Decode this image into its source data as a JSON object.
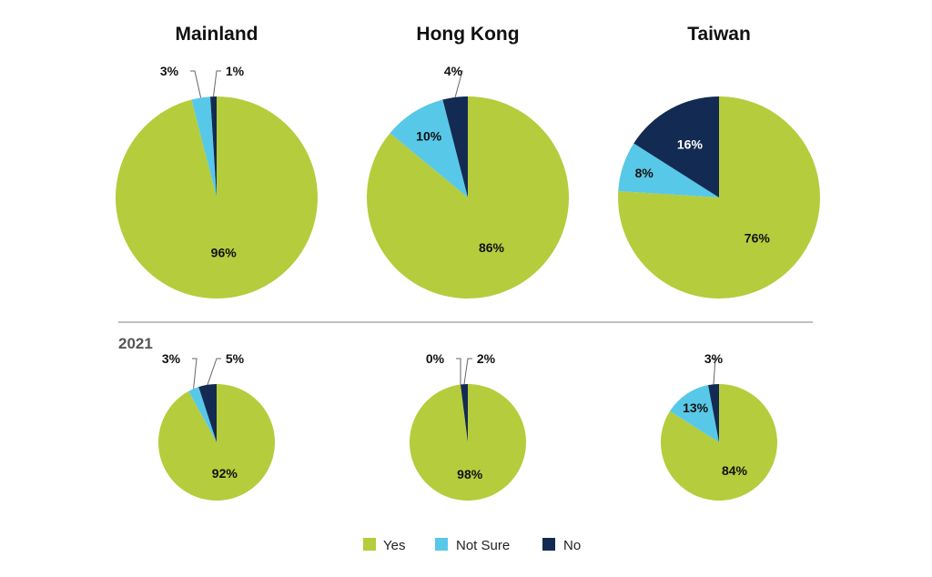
{
  "chart_data": {
    "type": "pie",
    "legend": {
      "placement": "bottom-center",
      "entries": [
        {
          "label": "Yes",
          "color": "#b5cc3c"
        },
        {
          "label": "Not Sure",
          "color": "#58c8e8"
        },
        {
          "label": "No",
          "color": "#132b52"
        }
      ]
    },
    "section_label": "2021",
    "rows": [
      {
        "row": "top",
        "pies": [
          {
            "title": "Mainland",
            "slices": [
              {
                "category": "Yes",
                "value": 96,
                "label": "96%"
              },
              {
                "category": "Not Sure",
                "value": 3,
                "label": "3%"
              },
              {
                "category": "No",
                "value": 1,
                "label": "1%"
              }
            ]
          },
          {
            "title": "Hong Kong",
            "slices": [
              {
                "category": "Yes",
                "value": 86,
                "label": "86%"
              },
              {
                "category": "Not Sure",
                "value": 10,
                "label": "10%"
              },
              {
                "category": "No",
                "value": 4,
                "label": "4%"
              }
            ]
          },
          {
            "title": "Taiwan",
            "slices": [
              {
                "category": "Yes",
                "value": 76,
                "label": "76%"
              },
              {
                "category": "Not Sure",
                "value": 8,
                "label": "8%"
              },
              {
                "category": "No",
                "value": 16,
                "label": "16%"
              }
            ]
          }
        ]
      },
      {
        "row": "2021",
        "pies": [
          {
            "title": "",
            "slices": [
              {
                "category": "Yes",
                "value": 92,
                "label": "92%"
              },
              {
                "category": "Not Sure",
                "value": 3,
                "label": "3%"
              },
              {
                "category": "No",
                "value": 5,
                "label": "5%"
              }
            ]
          },
          {
            "title": "",
            "slices": [
              {
                "category": "Yes",
                "value": 98,
                "label": "98%"
              },
              {
                "category": "Not Sure",
                "value": 0,
                "label": "0%"
              },
              {
                "category": "No",
                "value": 2,
                "label": "2%"
              }
            ]
          },
          {
            "title": "",
            "slices": [
              {
                "category": "Yes",
                "value": 84,
                "label": "84%"
              },
              {
                "category": "Not Sure",
                "value": 13,
                "label": "13%"
              },
              {
                "category": "No",
                "value": 3,
                "label": "3%"
              }
            ]
          }
        ]
      }
    ]
  }
}
